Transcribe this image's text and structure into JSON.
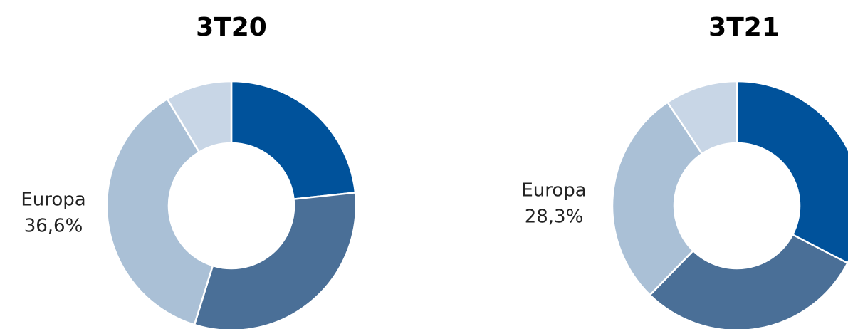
{
  "chart_data": [
    {
      "type": "donut",
      "title": "3T20",
      "categories": [
        null,
        null,
        "Europa",
        null
      ],
      "values": [
        23.3,
        31.5,
        36.6,
        8.6
      ],
      "value_labels": [
        null,
        null,
        "36,6%",
        null
      ],
      "colors": [
        "#00529b",
        "#4a6f97",
        "#aac0d6",
        "#c8d6e6"
      ]
    },
    {
      "type": "donut",
      "title": "3T21",
      "categories": [
        null,
        null,
        "Europa",
        null
      ],
      "values": [
        32.6,
        29.7,
        28.3,
        9.4
      ],
      "value_labels": [
        null,
        null,
        "28,3%",
        null
      ],
      "colors": [
        "#00529b",
        "#4a6f97",
        "#aac0d6",
        "#c8d6e6"
      ]
    }
  ]
}
